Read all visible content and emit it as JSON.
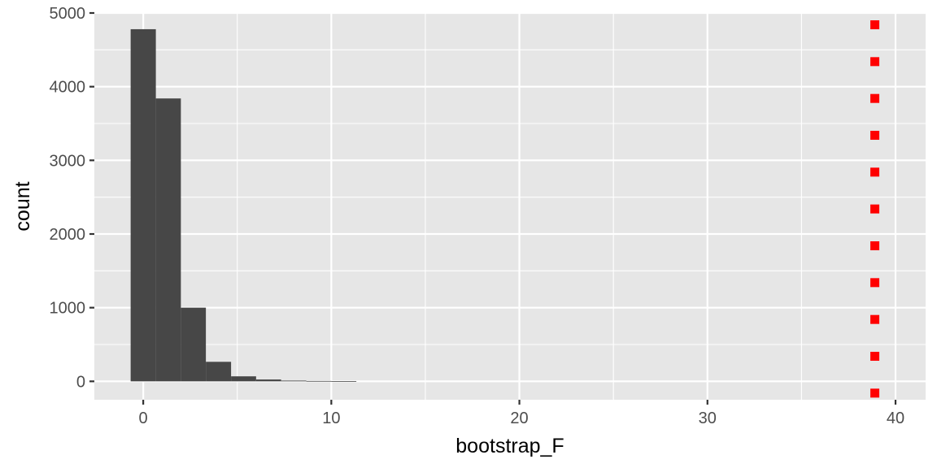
{
  "chart_data": {
    "type": "bar",
    "subtype": "histogram",
    "title": "",
    "xlabel": "bootstrap_F",
    "ylabel": "count",
    "xlim": [
      -2.6,
      41.6
    ],
    "ylim": [
      -250,
      5000
    ],
    "x_ticks": [
      0,
      10,
      20,
      30,
      40
    ],
    "x_tick_labels": [
      "0",
      "10",
      "20",
      "30",
      "40"
    ],
    "y_ticks": [
      0,
      1000,
      2000,
      3000,
      4000,
      5000
    ],
    "y_tick_labels": [
      "0",
      "1000",
      "2000",
      "3000",
      "4000",
      "5000"
    ],
    "grid": true,
    "bin_width": 1.33,
    "bins": [
      {
        "x_start": -0.67,
        "x_end": 0.67,
        "count": 4780
      },
      {
        "x_start": 0.67,
        "x_end": 2.0,
        "count": 3840
      },
      {
        "x_start": 2.0,
        "x_end": 3.33,
        "count": 1000
      },
      {
        "x_start": 3.33,
        "x_end": 4.67,
        "count": 265
      },
      {
        "x_start": 4.67,
        "x_end": 6.0,
        "count": 68
      },
      {
        "x_start": 6.0,
        "x_end": 7.33,
        "count": 25
      },
      {
        "x_start": 7.33,
        "x_end": 8.67,
        "count": 10
      },
      {
        "x_start": 8.67,
        "x_end": 10.0,
        "count": 5
      },
      {
        "x_start": 10.0,
        "x_end": 11.33,
        "count": 2
      }
    ],
    "reference_points": {
      "color": "#ff0000",
      "x": 38.9,
      "y": [
        4840,
        4340,
        3840,
        3340,
        2840,
        2340,
        1840,
        1340,
        840,
        340,
        -160
      ]
    },
    "colors": {
      "bars": "#474747",
      "panel": "#e6e6e6",
      "grid": "#ffffff",
      "points": "#ff0000"
    }
  }
}
